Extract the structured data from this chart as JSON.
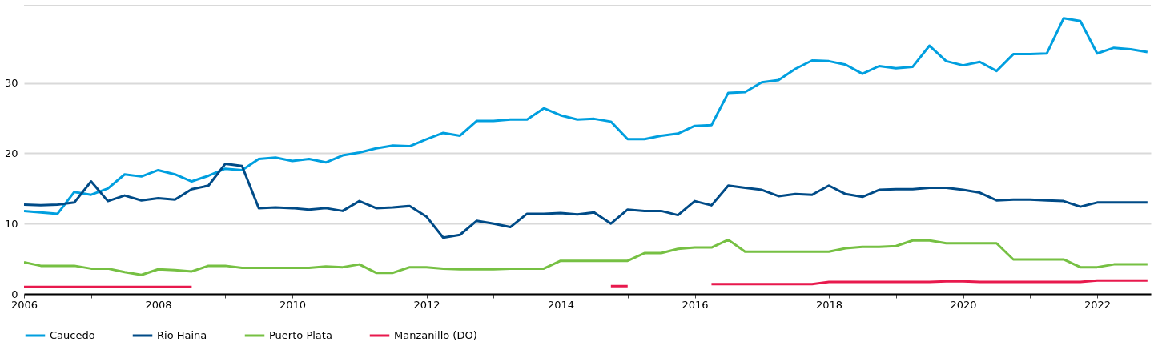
{
  "chart_data": {
    "type": "line",
    "x": [
      2006,
      2006.25,
      2006.5,
      2006.75,
      2007,
      2007.25,
      2007.5,
      2007.75,
      2008,
      2008.25,
      2008.5,
      2008.75,
      2009,
      2009.25,
      2009.5,
      2009.75,
      2010,
      2010.25,
      2010.5,
      2010.75,
      2011,
      2011.25,
      2011.5,
      2011.75,
      2012,
      2012.25,
      2012.5,
      2012.75,
      2013,
      2013.25,
      2013.5,
      2013.75,
      2014,
      2014.25,
      2014.5,
      2014.75,
      2015,
      2015.25,
      2015.5,
      2015.75,
      2016,
      2016.25,
      2016.5,
      2016.75,
      2017,
      2017.25,
      2017.5,
      2017.75,
      2018,
      2018.25,
      2018.5,
      2018.75,
      2019,
      2019.25,
      2019.5,
      2019.75,
      2020,
      2020.25,
      2020.5,
      2020.75,
      2021,
      2021.25,
      2021.5,
      2021.75,
      2022,
      2022.25,
      2022.5,
      2022.75
    ],
    "series": [
      {
        "name": "Caucedo",
        "color": "#009fdf",
        "values": [
          11.8,
          11.6,
          11.4,
          14.5,
          14.1,
          15.0,
          17.0,
          16.7,
          17.6,
          17.0,
          16.0,
          16.8,
          17.8,
          17.6,
          19.2,
          19.4,
          18.9,
          19.2,
          18.7,
          19.7,
          20.1,
          20.7,
          21.1,
          21.0,
          22.0,
          22.9,
          22.5,
          24.6,
          24.6,
          24.8,
          24.8,
          26.4,
          25.4,
          24.8,
          24.9,
          24.5,
          22.0,
          22.0,
          22.5,
          22.8,
          23.9,
          24.0,
          28.6,
          28.7,
          30.1,
          30.4,
          32.0,
          33.2,
          33.1,
          32.6,
          31.3,
          32.4,
          32.1,
          32.3,
          35.3,
          33.1,
          32.5,
          33.0,
          31.7,
          34.1,
          34.1,
          34.2,
          39.2,
          38.8,
          34.2,
          35.0,
          34.8,
          34.4
        ]
      },
      {
        "name": "Rio Haina",
        "color": "#004b87",
        "values": [
          12.7,
          12.6,
          12.7,
          13.0,
          16.0,
          13.2,
          14.0,
          13.3,
          13.6,
          13.4,
          14.9,
          15.4,
          18.5,
          18.2,
          12.2,
          12.3,
          12.2,
          12.0,
          12.2,
          11.8,
          13.2,
          12.2,
          12.3,
          12.5,
          11.0,
          8.0,
          8.4,
          10.4,
          10.0,
          9.5,
          11.4,
          11.4,
          11.5,
          11.3,
          11.6,
          10.0,
          12.0,
          11.8,
          11.8,
          11.2,
          13.2,
          12.6,
          15.4,
          15.1,
          14.8,
          13.9,
          14.2,
          14.1,
          15.4,
          14.2,
          13.8,
          14.8,
          14.9,
          14.9,
          15.1,
          15.1,
          14.8,
          14.4,
          13.3,
          13.4,
          13.4,
          13.3,
          13.2,
          12.4,
          13.0,
          13.0,
          13.0,
          13.0
        ]
      },
      {
        "name": "Puerto Plata",
        "color": "#76c043",
        "values": [
          4.5,
          4.0,
          4.0,
          4.0,
          3.6,
          3.6,
          3.1,
          2.7,
          3.5,
          3.4,
          3.2,
          4.0,
          4.0,
          3.7,
          3.7,
          3.7,
          3.7,
          3.7,
          3.9,
          3.8,
          4.2,
          3.0,
          3.0,
          3.8,
          3.8,
          3.6,
          3.5,
          3.5,
          3.5,
          3.6,
          3.6,
          3.6,
          4.7,
          4.7,
          4.7,
          4.7,
          4.7,
          5.8,
          5.8,
          6.4,
          6.6,
          6.6,
          7.7,
          6.0,
          6.0,
          6.0,
          6.0,
          6.0,
          6.0,
          6.5,
          6.7,
          6.7,
          6.8,
          7.6,
          7.6,
          7.2,
          7.2,
          7.2,
          7.2,
          4.9,
          4.9,
          4.9,
          4.9,
          3.8,
          3.8,
          4.2,
          4.2,
          4.2
        ]
      },
      {
        "name": "Manzanillo (DO)",
        "color": "#e8194d",
        "values": [
          1.0,
          1.0,
          1.0,
          1.0,
          1.0,
          1.0,
          1.0,
          1.0,
          1.0,
          1.0,
          1.0,
          null,
          null,
          null,
          null,
          null,
          null,
          null,
          null,
          null,
          null,
          null,
          null,
          null,
          null,
          null,
          null,
          null,
          null,
          null,
          null,
          null,
          null,
          null,
          null,
          1.1,
          1.1,
          null,
          null,
          null,
          null,
          1.4,
          1.4,
          1.4,
          1.4,
          1.4,
          1.4,
          1.4,
          1.7,
          1.7,
          1.7,
          1.7,
          1.7,
          1.7,
          1.7,
          1.8,
          1.8,
          1.7,
          1.7,
          1.7,
          1.7,
          1.7,
          1.7,
          1.7,
          1.9,
          1.9,
          1.9,
          1.9
        ]
      }
    ],
    "xlim": [
      2006,
      2022.8
    ],
    "xticks": [
      2006,
      {
        "value": 2007,
        "label": null
      },
      2008,
      {
        "value": 2009,
        "label": null
      },
      2010,
      {
        "value": 2011,
        "label": null
      },
      2012,
      {
        "value": 2013,
        "label": null
      },
      2014,
      {
        "value": 2015,
        "label": null
      },
      2016,
      {
        "value": 2017,
        "label": null
      },
      2018,
      {
        "value": 2019,
        "label": null
      },
      2020,
      {
        "value": 2021,
        "label": null
      },
      2022
    ],
    "ylim": [
      0,
      41
    ],
    "yticks": [
      0,
      10,
      20,
      30
    ],
    "grid": "y",
    "legend": "bottom",
    "line_style": "solid",
    "marker": "none"
  }
}
